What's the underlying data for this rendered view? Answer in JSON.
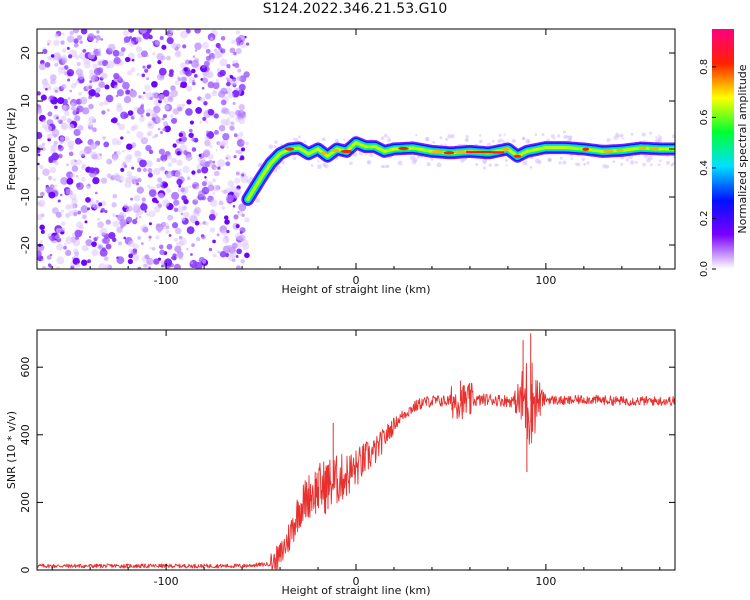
{
  "title": "S124.2022.346.21.53.G10",
  "chart_data": [
    {
      "type": "heatmap",
      "xlabel": "Height of straight line (km)",
      "ylabel": "Frequency (Hz)",
      "xlim": [
        -168,
        168
      ],
      "ylim": [
        -25,
        25
      ],
      "xticks": [
        -100,
        0,
        100
      ],
      "yticks": [
        20,
        10,
        0,
        -10,
        -20
      ],
      "colorbar": {
        "label": "Normalized spectral amplitude",
        "range": [
          0,
          0.95
        ],
        "ticks": [
          0.0,
          0.2,
          0.4,
          0.6,
          0.8
        ],
        "colors": [
          "#ffffff",
          "#7a00ff",
          "#0010ff",
          "#00e0ff",
          "#00ff30",
          "#ffff00",
          "#ff2000",
          "#ff0080"
        ]
      },
      "noise_region": {
        "x": [
          -168,
          -57
        ],
        "y": [
          -25,
          25
        ]
      },
      "ridge": {
        "x": [
          -57,
          -50,
          -45,
          -40,
          -35,
          -30,
          -25,
          -20,
          -15,
          -10,
          -5,
          0,
          5,
          10,
          15,
          20,
          30,
          40,
          50,
          60,
          70,
          80,
          85,
          90,
          100,
          110,
          120,
          130,
          140,
          150,
          160,
          168
        ],
        "y": [
          -10.5,
          -6,
          -3,
          -1,
          0,
          0.2,
          -1,
          0,
          -1.5,
          0,
          -0.5,
          1.3,
          0.5,
          0.5,
          -0.5,
          0,
          0.2,
          -0.5,
          -0.8,
          -0.5,
          -0.8,
          0,
          -1.5,
          -0.5,
          0.3,
          0.3,
          0,
          -0.5,
          -0.3,
          0.2,
          0,
          0
        ]
      }
    },
    {
      "type": "line",
      "xlabel": "Height of straight line (km)",
      "ylabel": "SNR (10 * v/v)",
      "xlim": [
        -168,
        168
      ],
      "ylim": [
        0,
        710
      ],
      "xticks": [
        -100,
        0,
        100
      ],
      "yticks": [
        0,
        200,
        400,
        600
      ],
      "color": "#e8302e",
      "baseline": {
        "x": [
          -168,
          -60,
          -45,
          -40,
          -35,
          -30,
          -25,
          -20,
          -15,
          -10,
          -5,
          0,
          5,
          10,
          15,
          20,
          25,
          30,
          35,
          40,
          50,
          60,
          70,
          80,
          90,
          100,
          110,
          120,
          140,
          168
        ],
        "y": [
          12,
          12,
          18,
          40,
          100,
          180,
          220,
          240,
          250,
          265,
          280,
          300,
          330,
          350,
          390,
          430,
          460,
          480,
          495,
          500,
          500,
          500,
          505,
          500,
          500,
          505,
          500,
          505,
          500,
          500
        ]
      },
      "features": [
        {
          "x": -12,
          "y": 435
        },
        {
          "x": 55,
          "y": 560
        },
        {
          "x": 88,
          "y": 680
        },
        {
          "x": 92,
          "y": 700
        },
        {
          "x": 90,
          "y": 290
        }
      ]
    }
  ]
}
